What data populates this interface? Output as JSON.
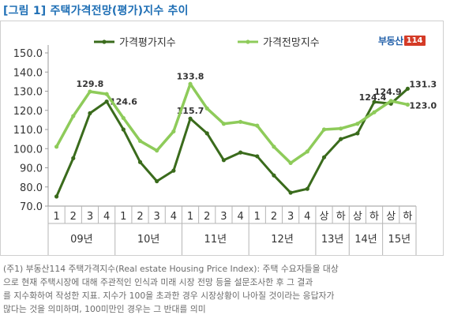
{
  "figure_title": "[그림 1] 주택가격전망(평가)지수 추이",
  "logo": {
    "text": "부동산",
    "number": "114"
  },
  "notes": [
    "(주1) 부동산114 주택가격지수(Real estate Housing Price Index): 주택 수요자들을 대상",
    "으로 현재 주택시장에 대해 주관적인 인식과 미래 시장 전망 등을 설문조사한 후 그 결과",
    "를 지수화하여 작성한 지표. 지수가 100을 초과한 경우 시장상황이 나아질 것이라는 응답자가",
    "많다는 것을 의미하며, 100미만인 경우는 그 반대를 의미"
  ],
  "chart_data": {
    "type": "line",
    "ylim": [
      70,
      150
    ],
    "yticks": [
      "70.0",
      "80.0",
      "90.0",
      "100.0",
      "110.0",
      "120.0",
      "130.0",
      "140.0",
      "150.0"
    ],
    "categories": [
      "1",
      "2",
      "3",
      "4",
      "1",
      "2",
      "3",
      "4",
      "1",
      "2",
      "3",
      "4",
      "1",
      "2",
      "3",
      "4",
      "상",
      "하",
      "상",
      "하",
      "상",
      "하"
    ],
    "groups": [
      {
        "label": "09년",
        "span": 4
      },
      {
        "label": "10년",
        "span": 4
      },
      {
        "label": "11년",
        "span": 4
      },
      {
        "label": "12년",
        "span": 4
      },
      {
        "label": "13년",
        "span": 2
      },
      {
        "label": "14년",
        "span": 2
      },
      {
        "label": "15년",
        "span": 2
      }
    ],
    "legend_position": "top",
    "series": [
      {
        "name": "가격평가지수",
        "color": "#3a6b1c",
        "values": [
          75.0,
          95.0,
          118.5,
          124.6,
          110.0,
          93.0,
          83.0,
          88.5,
          115.7,
          108.0,
          94.0,
          98.0,
          96.0,
          86.0,
          77.0,
          79.0,
          95.5,
          105.0,
          108.0,
          124.4,
          123.5,
          131.3
        ],
        "labels": {
          "3": "124.6",
          "8": "115.7",
          "19": "124.4",
          "21": "131.3"
        }
      },
      {
        "name": "가격전망지수",
        "color": "#8ecb5a",
        "values": [
          101.0,
          117.0,
          129.8,
          128.5,
          116.0,
          104.0,
          99.0,
          109.0,
          133.8,
          121.0,
          113.0,
          114.0,
          112.0,
          101.0,
          92.5,
          98.5,
          110.0,
          110.5,
          113.0,
          119.0,
          124.9,
          123.0
        ],
        "labels": {
          "2": "129.8",
          "8": "133.8",
          "20": "124.9",
          "21": "123.0"
        }
      }
    ]
  }
}
